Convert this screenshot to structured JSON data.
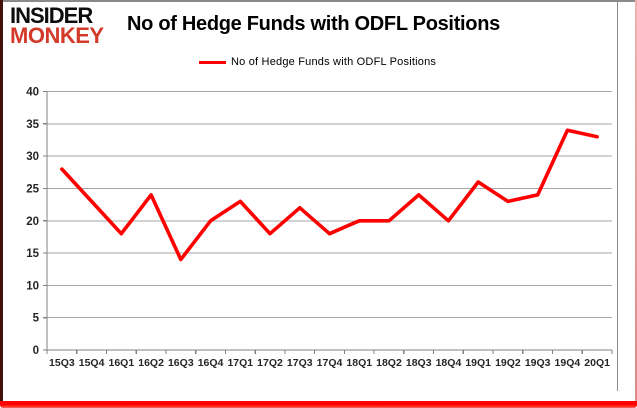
{
  "header": {
    "logo_line1": "INSIDER",
    "logo_line2": "MONKEY",
    "title": "No of Hedge Funds with ODFL Positions"
  },
  "legend": {
    "label": "No of Hedge Funds with ODFL Positions",
    "swatch_color": "#ff0000",
    "position": "top-center"
  },
  "chart_data": {
    "type": "line",
    "title": "No of Hedge Funds with ODFL Positions",
    "categories": [
      "15Q3",
      "15Q4",
      "16Q1",
      "16Q2",
      "16Q3",
      "16Q4",
      "17Q1",
      "17Q2",
      "17Q3",
      "17Q4",
      "18Q1",
      "18Q2",
      "18Q3",
      "18Q4",
      "19Q1",
      "19Q2",
      "19Q3",
      "19Q4",
      "20Q1"
    ],
    "series": [
      {
        "name": "No of Hedge Funds with ODFL Positions",
        "color": "#ff0000",
        "values": [
          28,
          23,
          18,
          24,
          14,
          20,
          23,
          18,
          22,
          18,
          20,
          20,
          24,
          20,
          26,
          23,
          24,
          34,
          33
        ]
      }
    ],
    "xlabel": "",
    "ylabel": "",
    "ylim": [
      0,
      40
    ],
    "ytick_step": 5,
    "grid": true,
    "legend_position": "top-center"
  },
  "colors": {
    "logo_red": "#d23b2a",
    "line_red": "#ff0000",
    "gridline": "#a6a6a6",
    "axis": "#808080",
    "tick_label": "#262626",
    "bottom_glow": "#ff0200"
  }
}
